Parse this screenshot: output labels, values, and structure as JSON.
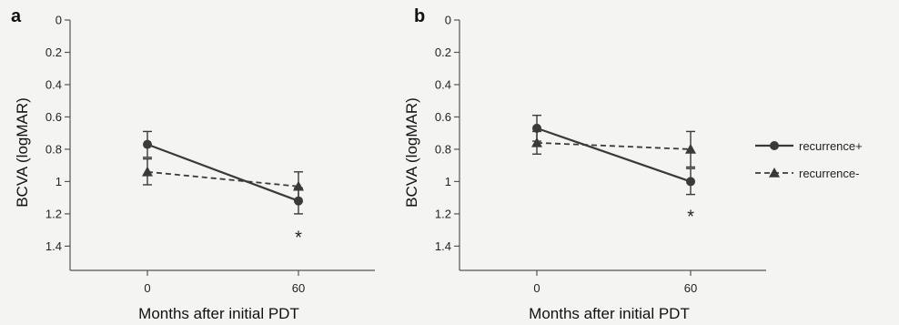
{
  "chart_data": [
    {
      "panel": "a",
      "type": "line",
      "xlabel": "Months after initial PDT",
      "ylabel": "BCVA (logMAR)",
      "x": [
        0,
        60
      ],
      "xticks": [
        "0",
        "60"
      ],
      "yticks": [
        "0",
        "0.2",
        "0.4",
        "0.6",
        "0.8",
        "1",
        "1.2",
        "1.4"
      ],
      "ylim": [
        0,
        1.55
      ],
      "y_inverted": true,
      "series": [
        {
          "name": "recurrence+",
          "values": [
            0.77,
            1.12
          ],
          "errors": [
            0.08,
            0.08
          ],
          "line": "solid",
          "marker": "circle"
        },
        {
          "name": "recurrence-",
          "values": [
            0.94,
            1.03
          ],
          "errors": [
            0.08,
            0.09
          ],
          "line": "dashed",
          "marker": "triangle"
        }
      ],
      "annotations": [
        {
          "text": "*",
          "x": 60,
          "y": 1.34
        }
      ]
    },
    {
      "panel": "b",
      "type": "line",
      "xlabel": "Months after initial PDT",
      "ylabel": "BCVA (logMAR)",
      "x": [
        0,
        60
      ],
      "xticks": [
        "0",
        "60"
      ],
      "yticks": [
        "0",
        "0.2",
        "0.4",
        "0.6",
        "0.8",
        "1",
        "1.2",
        "1.4"
      ],
      "ylim": [
        0,
        1.55
      ],
      "y_inverted": true,
      "series": [
        {
          "name": "recurrence+",
          "values": [
            0.67,
            1.0
          ],
          "errors": [
            0.08,
            0.08
          ],
          "line": "solid",
          "marker": "circle"
        },
        {
          "name": "recurrence-",
          "values": [
            0.76,
            0.8
          ],
          "errors": [
            0.07,
            0.11
          ],
          "line": "dashed",
          "marker": "triangle"
        }
      ],
      "annotations": [
        {
          "text": "*",
          "x": 60,
          "y": 1.21
        }
      ]
    }
  ],
  "legend": {
    "position": "right",
    "items": [
      {
        "label": "recurrence+",
        "line": "solid",
        "marker": "circle"
      },
      {
        "label": "recurrence-",
        "line": "dashed",
        "marker": "triangle"
      }
    ]
  },
  "colors": {
    "series": "#3a3a3a",
    "axis": "#555555",
    "background": "#f4f4f2"
  }
}
